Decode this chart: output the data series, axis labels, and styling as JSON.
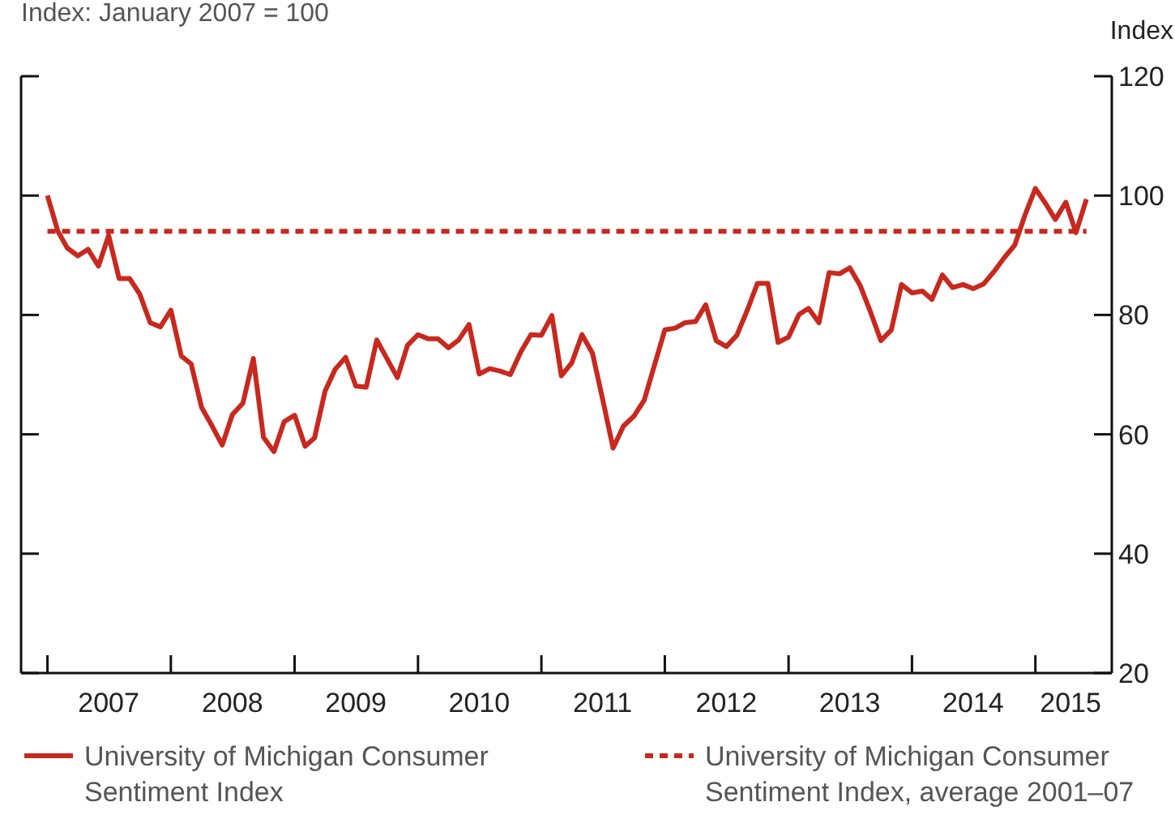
{
  "chart_data": {
    "type": "line",
    "subtitle": "Index: January 2007 = 100",
    "ylabel": "Index",
    "x": [
      "2007-01",
      "2007-02",
      "2007-03",
      "2007-04",
      "2007-05",
      "2007-06",
      "2007-07",
      "2007-08",
      "2007-09",
      "2007-10",
      "2007-11",
      "2007-12",
      "2008-01",
      "2008-02",
      "2008-03",
      "2008-04",
      "2008-05",
      "2008-06",
      "2008-07",
      "2008-08",
      "2008-09",
      "2008-10",
      "2008-11",
      "2008-12",
      "2009-01",
      "2009-02",
      "2009-03",
      "2009-04",
      "2009-05",
      "2009-06",
      "2009-07",
      "2009-08",
      "2009-09",
      "2009-10",
      "2009-11",
      "2009-12",
      "2010-01",
      "2010-02",
      "2010-03",
      "2010-04",
      "2010-05",
      "2010-06",
      "2010-07",
      "2010-08",
      "2010-09",
      "2010-10",
      "2010-11",
      "2010-12",
      "2011-01",
      "2011-02",
      "2011-03",
      "2011-04",
      "2011-05",
      "2011-06",
      "2011-07",
      "2011-08",
      "2011-09",
      "2011-10",
      "2011-11",
      "2011-12",
      "2012-01",
      "2012-02",
      "2012-03",
      "2012-04",
      "2012-05",
      "2012-06",
      "2012-07",
      "2012-08",
      "2012-09",
      "2012-10",
      "2012-11",
      "2012-12",
      "2013-01",
      "2013-02",
      "2013-03",
      "2013-04",
      "2013-05",
      "2013-06",
      "2013-07",
      "2013-08",
      "2013-09",
      "2013-10",
      "2013-11",
      "2013-12",
      "2014-01",
      "2014-02",
      "2014-03",
      "2014-04",
      "2014-05",
      "2014-06",
      "2014-07",
      "2014-08",
      "2014-09",
      "2014-10",
      "2014-11",
      "2014-12",
      "2015-01",
      "2015-02",
      "2015-03",
      "2015-04",
      "2015-05",
      "2015-06"
    ],
    "series": [
      {
        "name": "University of Michigan Consumer Sentiment Index",
        "color": "#c8281e",
        "values": [
          100,
          94,
          91.2,
          89.9,
          91,
          88.2,
          93.3,
          86.1,
          86.1,
          83.5,
          78.7,
          78,
          80.8,
          73.1,
          71.8,
          64.5,
          61.5,
          58.2,
          63.3,
          65.2,
          72.7,
          59.5,
          57.1,
          62.1,
          63.2,
          58,
          59.4,
          67.2,
          70.9,
          72.9,
          68.1,
          67.9,
          75.8,
          72.7,
          69.5,
          74.9,
          76.7,
          76,
          76,
          74.5,
          75.8,
          78.4,
          70.1,
          71,
          70.6,
          70,
          73.8,
          76.7,
          76.6,
          79.9,
          69.8,
          72,
          76.7,
          73.6,
          65.9,
          57.7,
          61.4,
          63,
          65.7,
          71.5,
          77.5,
          77.8,
          78.7,
          78.9,
          81.7,
          75.7,
          74.7,
          76.6,
          80.8,
          85.3,
          85.3,
          75.4,
          76.3,
          80.1,
          81.1,
          78.7,
          87.1,
          86.9,
          87.9,
          84.9,
          80.4,
          75.7,
          77.5,
          85.1,
          83.7,
          84,
          82.6,
          86.7,
          84.6,
          85.1,
          84.4,
          85.2,
          87.3,
          89.6,
          91.7,
          96.7,
          101.2,
          98.6,
          96,
          98.9,
          93.8,
          99.4
        ]
      }
    ],
    "ref_lines": [
      {
        "axis": "y",
        "value": 94,
        "label": "University of Michigan Consumer Sentiment Index, average 2001–07",
        "color": "#c8281e",
        "line_style": "dashed"
      }
    ],
    "xlim": [
      "2006-10-15",
      "2015-08-15"
    ],
    "xticks": [
      {
        "value": "2007-01-01",
        "label": null
      },
      {
        "value": "2007-07-01",
        "label": "2007"
      },
      {
        "value": "2008-01-01",
        "label": null
      },
      {
        "value": "2008-07-01",
        "label": "2008"
      },
      {
        "value": "2009-01-01",
        "label": null
      },
      {
        "value": "2009-07-01",
        "label": "2009"
      },
      {
        "value": "2010-01-01",
        "label": null
      },
      {
        "value": "2010-07-01",
        "label": "2010"
      },
      {
        "value": "2011-01-01",
        "label": null
      },
      {
        "value": "2011-07-01",
        "label": "2011"
      },
      {
        "value": "2012-01-01",
        "label": null
      },
      {
        "value": "2012-07-01",
        "label": "2012"
      },
      {
        "value": "2013-01-01",
        "label": null
      },
      {
        "value": "2013-07-01",
        "label": "2013"
      },
      {
        "value": "2014-01-01",
        "label": null
      },
      {
        "value": "2014-07-01",
        "label": "2014"
      },
      {
        "value": "2015-01-01",
        "label": null
      },
      {
        "value": "2015-04-15",
        "label": "2015"
      }
    ],
    "ylim": [
      20,
      120
    ],
    "yticks": [
      20,
      40,
      60,
      80,
      100,
      120
    ],
    "grid": false,
    "legend": "bottom",
    "line_style": "solid",
    "marker": "none"
  }
}
